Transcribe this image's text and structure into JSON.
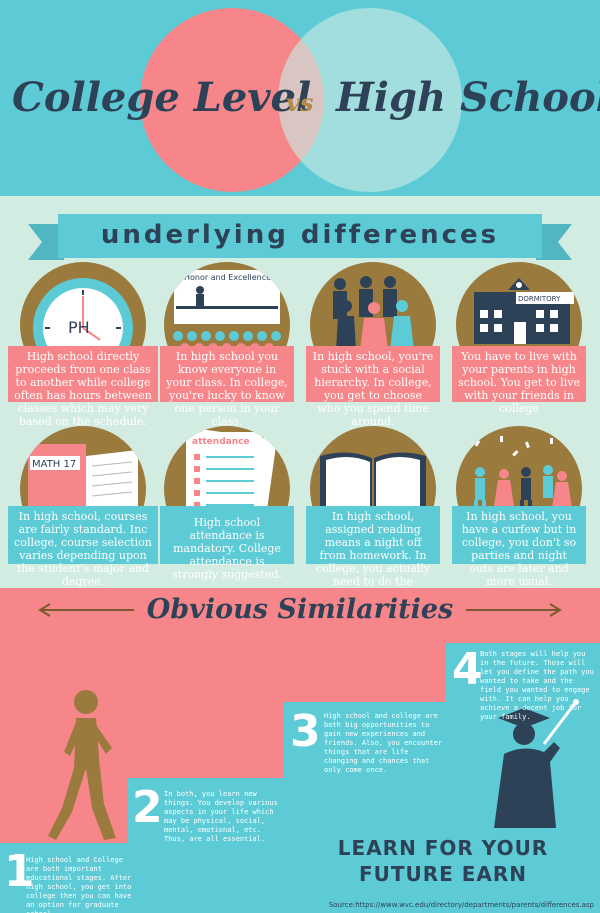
{
  "header": {
    "left_title": "College Level",
    "vs": "vs",
    "right_title": "High School"
  },
  "differences": {
    "banner": "underlying differences",
    "clock_label": "PH",
    "honor_label": "Honor and Excellence",
    "dormitory_label": "DORMITORY",
    "math_label": "MATH 17",
    "attendance_label": "attendance",
    "cards_row1": [
      "High school directly proceeds from one class to another while college often has hours between classes which may very based on the schedule.",
      "In high school you know everyone in your class. In college, you're lucky to know one person in your class.",
      "In high school, you're stuck with a social hierarchy. In college, you get to choose who you spend time around.",
      "You have to live with your parents in high school. You get to live with your friends in college"
    ],
    "cards_row2": [
      "In high school, courses are fairly standard. Inc college, course selection varies depending upon the student's major and degree.",
      "High school attendance is mandatory. College attendance is strongly suggested.",
      "In high school, assigned reading means a night off from homework. In college, you actually need to do the reading.",
      "In high school, you have a curfew but in college, you don't so parties and night outs are later and more usual."
    ]
  },
  "similarities": {
    "banner": "Obvious Similarities",
    "steps": [
      {
        "number": "1",
        "text": "High school and College are both important educational stages. After high school, you get into college then you can have an option for graduate school."
      },
      {
        "number": "2",
        "text": "In both, you learn new things. You develop various aspects in your life which may be physical, social, mental, emotional, etc. Thus, are all essential."
      },
      {
        "number": "3",
        "text": "High school and college are both big opportunities to gain new experiences and friends. Also, you encounter things that are life changing and chances that only come once."
      },
      {
        "number": "4",
        "text": "Both stages will help you in the future. Those will let you define the path you wanted to take and the field you wanted to engage with. It can help you achieve a decent job for your family."
      }
    ],
    "slogan_line1": "Learn for your",
    "slogan_line2": "future earn",
    "source": "Source:https://www.wvc.edu/directory/departments/parents/differences.asp"
  },
  "colors": {
    "teal": "#5ccbd6",
    "pink": "#f7868a",
    "navy": "#2e4257",
    "gold": "#9b7a3d",
    "mint": "#d3ece2"
  }
}
